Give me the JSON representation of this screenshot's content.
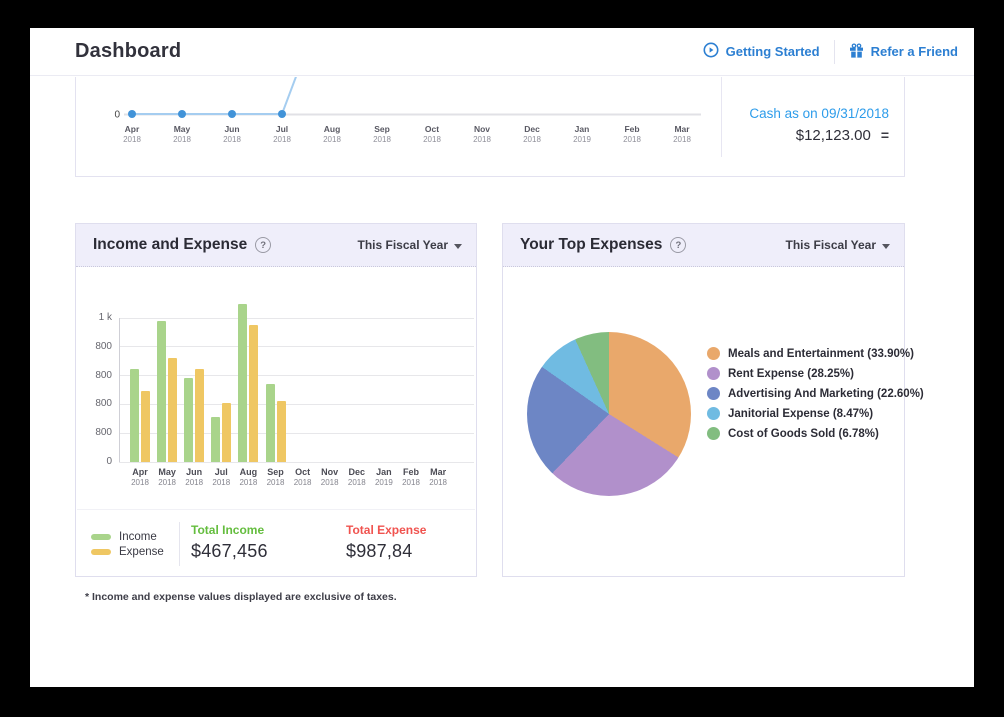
{
  "header": {
    "title": "Dashboard",
    "getting_started_label": "Getting Started",
    "refer_friend_label": "Refer a Friend"
  },
  "cash_card": {
    "label": "Cash as on 09/31/2018",
    "amount": "$12,123.00",
    "menu_glyph": "="
  },
  "income_card": {
    "title": "Income and Expense",
    "help_glyph": "?",
    "period_label": "This Fiscal Year",
    "legend": [
      {
        "label": "Income"
      },
      {
        "label": "Expense"
      }
    ],
    "totals": {
      "income_label": "Total Income",
      "income_value": "$467,456",
      "expense_label": "Total Expense",
      "expense_value": "$987,84"
    }
  },
  "expenses_card": {
    "title": "Your Top Expenses",
    "help_glyph": "?",
    "period_label": "This Fiscal Year"
  },
  "footnote": "* Income and expense values displayed are exclusive of taxes.",
  "colors": {
    "link_blue": "#2c7fd2",
    "cash_blue": "#2d9cea",
    "line_blue": "#a5cdf0",
    "dot_blue": "#4193d8",
    "total_income_green": "#64bd3e",
    "total_expense_red": "#f0534f"
  },
  "chart_data": [
    {
      "id": "cash_line",
      "type": "line",
      "title": "Cash as on 09/31/2018",
      "categories": [
        [
          "Apr",
          "2018"
        ],
        [
          "May",
          "2018"
        ],
        [
          "Jun",
          "2018"
        ],
        [
          "Jul",
          "2018"
        ],
        [
          "Aug",
          "2018"
        ],
        [
          "Sep",
          "2018"
        ],
        [
          "Oct",
          "2018"
        ],
        [
          "Nov",
          "2018"
        ],
        [
          "Dec",
          "2018"
        ],
        [
          "Jan",
          "2019"
        ],
        [
          "Feb",
          "2018"
        ],
        [
          "Mar",
          "2018"
        ]
      ],
      "values": [
        0,
        0,
        0,
        0,
        null,
        null,
        null,
        null,
        null,
        null,
        null,
        null
      ],
      "spike_after_index": 3,
      "y_zero_label": "0",
      "line_color": "#a5cdf0",
      "dot_color": "#4193d8",
      "axis_color": "#e1e1e6"
    },
    {
      "id": "income_expense_bar",
      "type": "bar",
      "title": "Income and Expense",
      "categories": [
        [
          "Apr",
          "2018"
        ],
        [
          "May",
          "2018"
        ],
        [
          "Jun",
          "2018"
        ],
        [
          "Jul",
          "2018"
        ],
        [
          "Aug",
          "2018"
        ],
        [
          "Sep",
          "2018"
        ],
        [
          "Oct",
          "2018"
        ],
        [
          "Nov",
          "2018"
        ],
        [
          "Dec",
          "2018"
        ],
        [
          "Jan",
          "2019"
        ],
        [
          "Feb",
          "2018"
        ],
        [
          "Mar",
          "2018"
        ]
      ],
      "series": [
        {
          "name": "Income",
          "color": "#a9d48b",
          "values": [
            645,
            980,
            585,
            310,
            1095,
            540,
            null,
            null,
            null,
            null,
            null,
            null
          ]
        },
        {
          "name": "Expense",
          "color": "#efc763",
          "values": [
            490,
            720,
            645,
            410,
            950,
            425,
            null,
            null,
            null,
            null,
            null,
            null
          ]
        }
      ],
      "ylim": [
        0,
        1000
      ],
      "ytick_labels": [
        "1 k",
        "800",
        "800",
        "800",
        "800",
        "0"
      ],
      "grid": true,
      "legend_position": "bottom-left"
    },
    {
      "id": "top_expenses_pie",
      "type": "pie",
      "title": "Your Top Expenses",
      "slices": [
        {
          "label": "Meals and Entertainment (33.90%)",
          "value": 33.9,
          "color": "#e9a86b"
        },
        {
          "label": "Rent Expense (28.25%)",
          "value": 28.25,
          "color": "#b190cb"
        },
        {
          "label": "Advertising And Marketing (22.60%)",
          "value": 22.6,
          "color": "#6d86c5"
        },
        {
          "label": "Janitorial Expense (8.47%)",
          "value": 8.47,
          "color": "#70bbe2"
        },
        {
          "label": "Cost of Goods Sold (6.78%)",
          "value": 6.78,
          "color": "#82bd80"
        }
      ],
      "legend_position": "right",
      "start_angle_deg": 0,
      "direction": "clockwise"
    }
  ]
}
